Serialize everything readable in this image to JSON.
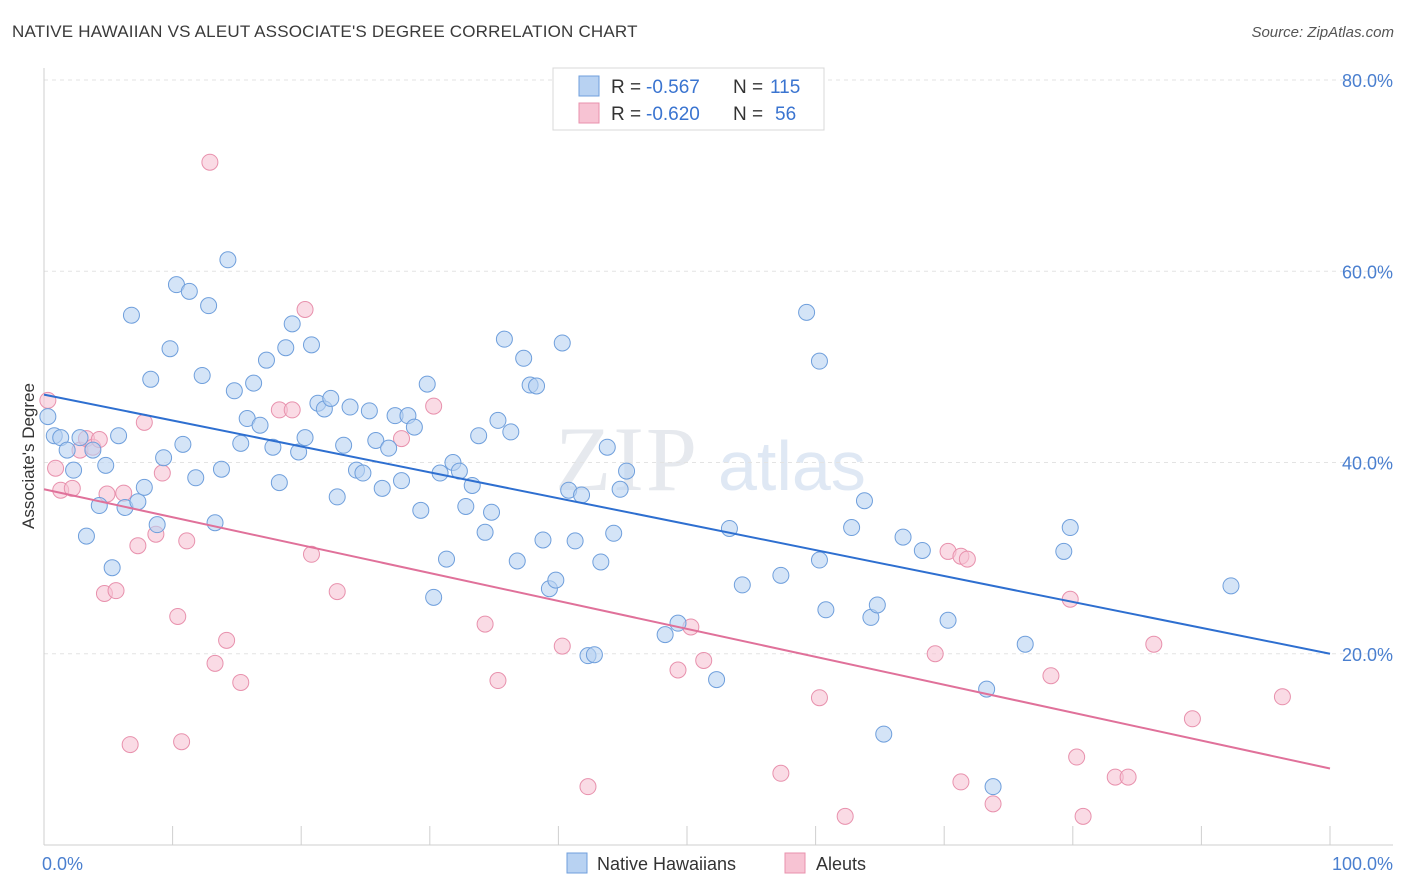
{
  "header": {
    "title": "NATIVE HAWAIIAN VS ALEUT ASSOCIATE'S DEGREE CORRELATION CHART",
    "source": "Source: ZipAtlas.com"
  },
  "watermark": {
    "zip": "ZIP",
    "atlas": "atlas"
  },
  "colors": {
    "blue_fill": "#b8d2f2",
    "blue_stroke": "#6f9fdc",
    "blue_line": "#2e6fd0",
    "pink_fill": "#f7c3d3",
    "pink_stroke": "#e891ad",
    "pink_line": "#e0719a",
    "tick_label": "#4a7fcf",
    "grid": "#e3e3e3"
  },
  "legend": {
    "rows": [
      {
        "r_label": "R =",
        "r_value": "-0.567",
        "n_label": "N =",
        "n_value": "115"
      },
      {
        "r_label": "R =",
        "r_value": "-0.620",
        "n_label": "N =",
        "n_value": "56"
      }
    ]
  },
  "chart_data": {
    "type": "scatter",
    "title": "NATIVE HAWAIIAN VS ALEUT ASSOCIATE'S DEGREE CORRELATION CHART",
    "xlabel": "",
    "ylabel": "Associate's Degree",
    "xlim": [
      0,
      100
    ],
    "ylim": [
      0,
      80
    ],
    "x_tick_labels": [
      "0.0%",
      "100.0%"
    ],
    "y_ticks": [
      20,
      40,
      60,
      80
    ],
    "y_tick_labels": [
      "20.0%",
      "40.0%",
      "60.0%",
      "80.0%"
    ],
    "grid": "horizontal dashed",
    "legend_position": "top-center",
    "series": [
      {
        "name": "Native Hawaiians",
        "r": -0.567,
        "n": 115,
        "trend": {
          "x": [
            0,
            100
          ],
          "y": [
            47.1,
            20.0
          ]
        },
        "points": [
          [
            0.3,
            44.8
          ],
          [
            0.8,
            42.8
          ],
          [
            1.3,
            42.6
          ],
          [
            1.8,
            41.3
          ],
          [
            2.3,
            39.2
          ],
          [
            2.8,
            42.6
          ],
          [
            3.3,
            32.3
          ],
          [
            3.8,
            41.3
          ],
          [
            4.3,
            35.5
          ],
          [
            4.8,
            39.7
          ],
          [
            5.3,
            29.0
          ],
          [
            5.8,
            42.8
          ],
          [
            6.3,
            35.3
          ],
          [
            6.8,
            55.4
          ],
          [
            7.3,
            35.9
          ],
          [
            7.8,
            37.4
          ],
          [
            8.3,
            48.7
          ],
          [
            8.8,
            33.5
          ],
          [
            9.3,
            40.5
          ],
          [
            9.8,
            51.9
          ],
          [
            10.3,
            58.6
          ],
          [
            10.8,
            41.9
          ],
          [
            11.3,
            57.9
          ],
          [
            11.8,
            38.4
          ],
          [
            12.3,
            49.1
          ],
          [
            12.8,
            56.4
          ],
          [
            13.3,
            33.7
          ],
          [
            13.8,
            39.3
          ],
          [
            14.3,
            61.2
          ],
          [
            14.8,
            47.5
          ],
          [
            15.3,
            42.0
          ],
          [
            15.8,
            44.6
          ],
          [
            16.3,
            48.3
          ],
          [
            16.8,
            43.9
          ],
          [
            17.3,
            50.7
          ],
          [
            17.8,
            41.6
          ],
          [
            18.3,
            37.9
          ],
          [
            18.8,
            52.0
          ],
          [
            19.3,
            54.5
          ],
          [
            19.8,
            41.1
          ],
          [
            20.3,
            42.6
          ],
          [
            20.8,
            52.3
          ],
          [
            21.3,
            46.2
          ],
          [
            21.8,
            45.6
          ],
          [
            22.3,
            46.7
          ],
          [
            22.8,
            36.4
          ],
          [
            23.3,
            41.8
          ],
          [
            23.8,
            45.8
          ],
          [
            24.3,
            39.2
          ],
          [
            24.8,
            38.9
          ],
          [
            25.3,
            45.4
          ],
          [
            25.8,
            42.3
          ],
          [
            26.3,
            37.3
          ],
          [
            26.8,
            41.5
          ],
          [
            27.3,
            44.9
          ],
          [
            27.8,
            38.1
          ],
          [
            28.3,
            44.9
          ],
          [
            28.8,
            43.7
          ],
          [
            29.3,
            35.0
          ],
          [
            29.8,
            48.2
          ],
          [
            30.3,
            25.9
          ],
          [
            30.8,
            38.9
          ],
          [
            31.3,
            29.9
          ],
          [
            31.8,
            40.0
          ],
          [
            32.3,
            39.1
          ],
          [
            32.8,
            35.4
          ],
          [
            33.3,
            37.6
          ],
          [
            33.8,
            42.8
          ],
          [
            34.3,
            32.7
          ],
          [
            34.8,
            34.8
          ],
          [
            35.3,
            44.4
          ],
          [
            35.8,
            52.9
          ],
          [
            36.3,
            43.2
          ],
          [
            36.8,
            29.7
          ],
          [
            37.3,
            50.9
          ],
          [
            37.8,
            48.1
          ],
          [
            38.3,
            48.0
          ],
          [
            38.8,
            31.9
          ],
          [
            39.3,
            26.8
          ],
          [
            39.8,
            27.7
          ],
          [
            40.3,
            52.5
          ],
          [
            40.8,
            37.1
          ],
          [
            41.3,
            31.8
          ],
          [
            41.8,
            36.6
          ],
          [
            42.3,
            19.8
          ],
          [
            42.8,
            19.9
          ],
          [
            43.3,
            29.6
          ],
          [
            43.8,
            41.6
          ],
          [
            44.3,
            32.6
          ],
          [
            44.8,
            37.2
          ],
          [
            45.3,
            39.1
          ],
          [
            48.3,
            22.0
          ],
          [
            49.3,
            23.2
          ],
          [
            52.3,
            17.3
          ],
          [
            53.3,
            33.1
          ],
          [
            54.3,
            27.2
          ],
          [
            57.3,
            28.2
          ],
          [
            59.3,
            55.7
          ],
          [
            60.3,
            50.6
          ],
          [
            60.3,
            29.8
          ],
          [
            60.8,
            24.6
          ],
          [
            62.8,
            33.2
          ],
          [
            63.8,
            36.0
          ],
          [
            64.3,
            23.8
          ],
          [
            64.8,
            25.1
          ],
          [
            66.8,
            32.2
          ],
          [
            68.3,
            30.8
          ],
          [
            70.3,
            23.5
          ],
          [
            73.3,
            16.3
          ],
          [
            76.3,
            21.0
          ],
          [
            79.3,
            30.7
          ],
          [
            79.8,
            33.2
          ],
          [
            92.3,
            27.1
          ],
          [
            73.8,
            6.1
          ],
          [
            65.3,
            11.6
          ]
        ]
      },
      {
        "name": "Aleuts",
        "r": -0.62,
        "n": 56,
        "trend": {
          "x": [
            0,
            100
          ],
          "y": [
            37.2,
            8.0
          ]
        },
        "points": [
          [
            0.3,
            46.5
          ],
          [
            0.9,
            39.4
          ],
          [
            1.3,
            37.1
          ],
          [
            2.2,
            37.3
          ],
          [
            2.8,
            41.3
          ],
          [
            3.3,
            42.5
          ],
          [
            3.8,
            41.6
          ],
          [
            4.3,
            42.4
          ],
          [
            4.7,
            26.3
          ],
          [
            4.9,
            36.7
          ],
          [
            5.6,
            26.6
          ],
          [
            6.2,
            36.8
          ],
          [
            6.7,
            10.5
          ],
          [
            7.3,
            31.3
          ],
          [
            7.8,
            44.2
          ],
          [
            8.7,
            32.5
          ],
          [
            9.2,
            38.9
          ],
          [
            10.4,
            23.9
          ],
          [
            10.7,
            10.8
          ],
          [
            11.1,
            31.8
          ],
          [
            12.9,
            71.4
          ],
          [
            13.3,
            19.0
          ],
          [
            14.2,
            21.4
          ],
          [
            15.3,
            17.0
          ],
          [
            18.3,
            45.5
          ],
          [
            19.3,
            45.5
          ],
          [
            20.3,
            56.0
          ],
          [
            20.8,
            30.4
          ],
          [
            22.8,
            26.5
          ],
          [
            27.8,
            42.5
          ],
          [
            30.3,
            45.9
          ],
          [
            34.3,
            23.1
          ],
          [
            35.3,
            17.2
          ],
          [
            40.3,
            20.8
          ],
          [
            42.3,
            6.1
          ],
          [
            49.3,
            18.3
          ],
          [
            50.3,
            22.8
          ],
          [
            51.3,
            19.3
          ],
          [
            57.3,
            7.5
          ],
          [
            60.3,
            15.4
          ],
          [
            62.3,
            3.0
          ],
          [
            69.3,
            20.0
          ],
          [
            70.3,
            30.7
          ],
          [
            71.3,
            30.2
          ],
          [
            71.8,
            29.9
          ],
          [
            71.3,
            6.6
          ],
          [
            73.8,
            4.3
          ],
          [
            78.3,
            17.7
          ],
          [
            79.8,
            25.7
          ],
          [
            80.3,
            9.2
          ],
          [
            80.8,
            3.0
          ],
          [
            83.3,
            7.1
          ],
          [
            84.3,
            7.1
          ],
          [
            86.3,
            21.0
          ],
          [
            89.3,
            13.2
          ],
          [
            96.3,
            15.5
          ]
        ]
      }
    ]
  }
}
